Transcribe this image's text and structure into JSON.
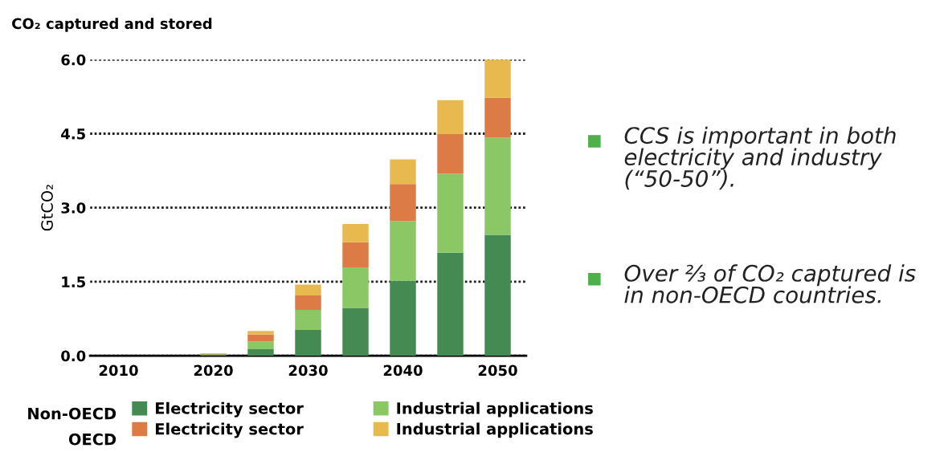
{
  "chart_data": {
    "type": "bar",
    "title": "CO₂ captured and stored",
    "ylabel": "GtCO₂",
    "categories": [
      "2010",
      null,
      "2020",
      null,
      "2030",
      null,
      "2040",
      null,
      "2050"
    ],
    "stacked": true,
    "series": [
      {
        "name": "Electricity sector",
        "color": "#448a52",
        "values": [
          0,
          0,
          0.01,
          0.13,
          0.52,
          0.97,
          1.52,
          2.09,
          2.45
        ]
      },
      {
        "name": "Industrial applications",
        "color": "#8cc766",
        "values": [
          0,
          0,
          0.02,
          0.16,
          0.41,
          0.82,
          1.21,
          1.6,
          1.97
        ]
      },
      {
        "name": "Electricity sector",
        "color": "#dc7b45",
        "values": [
          0,
          0,
          0.01,
          0.14,
          0.29,
          0.51,
          0.75,
          0.8,
          0.81
        ]
      },
      {
        "name": "Industrial applications",
        "color": "#e8b94f",
        "values": [
          0,
          0,
          0.01,
          0.07,
          0.22,
          0.37,
          0.5,
          0.69,
          0.77
        ]
      }
    ],
    "ylim": [
      0,
      6.0
    ],
    "yticks": [
      {
        "value": 0,
        "label": "0.0"
      },
      {
        "value": 1.5,
        "label": "1.5"
      },
      {
        "value": 3.0,
        "label": "3.0"
      },
      {
        "value": 4.5,
        "label": "4.5"
      },
      {
        "value": 6.0,
        "label": "6.0"
      }
    ],
    "grid": "y",
    "legend": "bottom",
    "annotations": [
      "CCS is important in both\nelectricity and industry\n(“50-50”).",
      "Over ⅔ of CO₂ captured is\nin non-OECD countries.",
      "Non-OECD",
      "OECD"
    ]
  }
}
